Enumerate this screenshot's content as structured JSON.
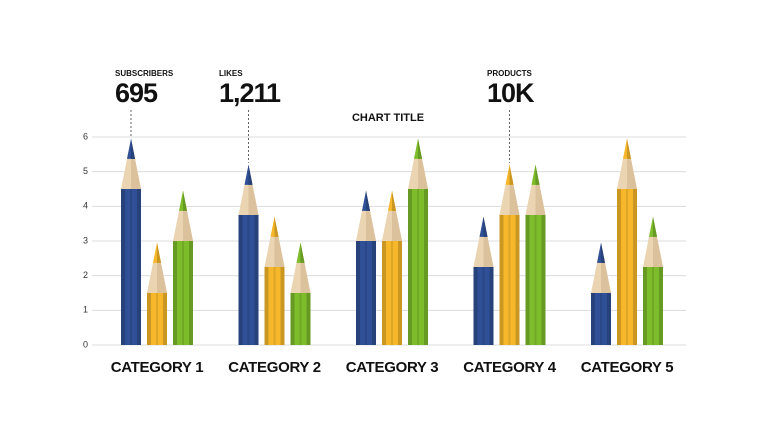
{
  "chart_data": {
    "type": "pencil-bar",
    "title": "CHART TITLE",
    "categories": [
      "CATEGORY 1",
      "CATEGORY 2",
      "CATEGORY 3",
      "CATEGORY 4",
      "CATEGORY 5"
    ],
    "series": [
      {
        "color": "#2f4f96",
        "values": [
          4.5,
          3.75,
          3.0,
          2.25,
          1.5
        ]
      },
      {
        "color": "#f6b82a",
        "values": [
          1.5,
          2.25,
          3.0,
          3.75,
          4.5
        ]
      },
      {
        "color": "#7dbc2b",
        "values": [
          3.0,
          1.5,
          4.5,
          3.75,
          2.25
        ]
      }
    ],
    "ylim": [
      0,
      6
    ],
    "yticks": [
      0,
      1,
      2,
      3,
      4,
      5,
      6
    ],
    "grid": true,
    "annotations": [
      {
        "label": "SUBSCRIBERS",
        "text": "695"
      },
      {
        "label": "LIKES",
        "text": "1,211"
      },
      {
        "label": "PRODUCTS",
        "text": "10K"
      }
    ]
  }
}
